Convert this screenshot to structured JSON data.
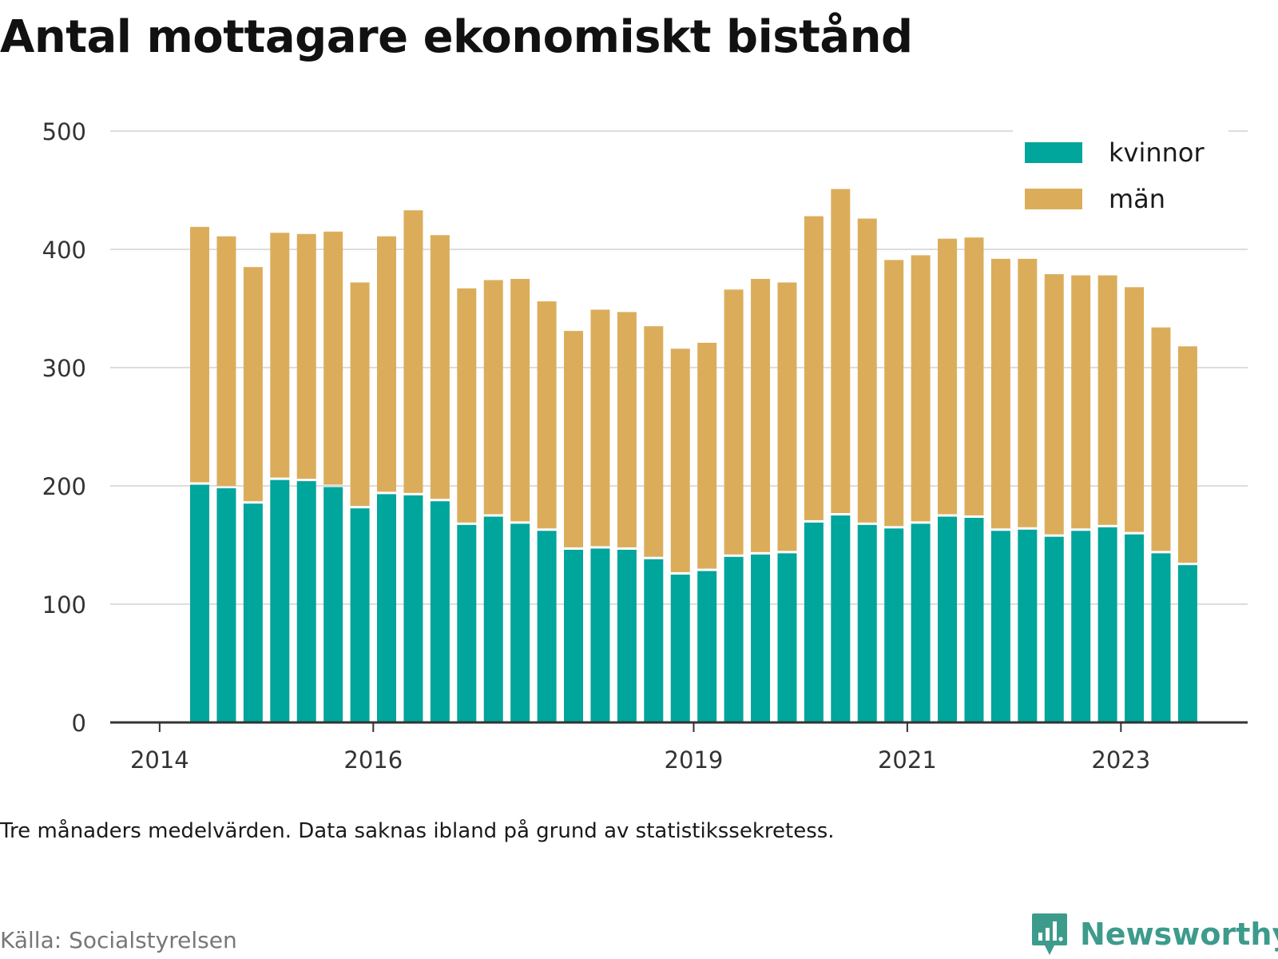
{
  "note": "Tre månaders medelvärden. Data saknas ibland på grund av statistikssekretess.",
  "source": "Källa: Socialstyrelsen",
  "brand": "Newsworthy",
  "colors": {
    "kvinnor": "#00a59b",
    "man": "#dbad5b",
    "grid": "#dddddd",
    "axis": "#333333"
  },
  "chart_data": {
    "type": "bar",
    "stacked": true,
    "title": "Antal mottagare ekonomiskt bistånd",
    "ylim": [
      0,
      500
    ],
    "yticks": [
      0,
      100,
      200,
      300,
      400,
      500
    ],
    "xticks": [
      "2014",
      "2016",
      "2019",
      "2021",
      "2023"
    ],
    "legend": "top-right",
    "grid": true,
    "categories": [
      "2014 Q2",
      "2014 Q3",
      "2014 Q4",
      "2015 Q1",
      "2015 Q2",
      "2015 Q3",
      "2015 Q4",
      "2016 Q1",
      "2016 Q2",
      "2016 Q3",
      "2016 Q4",
      "2017 Q1",
      "2017 Q2",
      "2017 Q3",
      "2017 Q4",
      "2018 Q1",
      "2018 Q2",
      "2018 Q3",
      "2018 Q4",
      "2019 Q1",
      "2019 Q2",
      "2019 Q3",
      "2019 Q4",
      "2020 Q1",
      "2020 Q2",
      "2020 Q3",
      "2020 Q4",
      "2021 Q1",
      "2021 Q2",
      "2021 Q3",
      "2021 Q4",
      "2022 Q1",
      "2022 Q2",
      "2022 Q3",
      "2022 Q4",
      "2023 Q1",
      "2023 Q2",
      "2023 Q3"
    ],
    "series": [
      {
        "name": "kvinnor",
        "values": [
          201,
          198,
          185,
          205,
          204,
          199,
          181,
          193,
          192,
          187,
          167,
          174,
          168,
          162,
          146,
          147,
          146,
          138,
          125,
          128,
          140,
          142,
          143,
          169,
          175,
          167,
          164,
          168,
          174,
          173,
          162,
          163,
          157,
          162,
          165,
          159,
          143,
          133
        ]
      },
      {
        "name": "män",
        "values": [
          218,
          213,
          200,
          209,
          209,
          216,
          191,
          218,
          241,
          225,
          200,
          200,
          207,
          194,
          185,
          202,
          201,
          197,
          191,
          193,
          226,
          233,
          229,
          259,
          276,
          259,
          227,
          227,
          235,
          237,
          230,
          229,
          222,
          216,
          213,
          209,
          191,
          185
        ]
      }
    ]
  }
}
